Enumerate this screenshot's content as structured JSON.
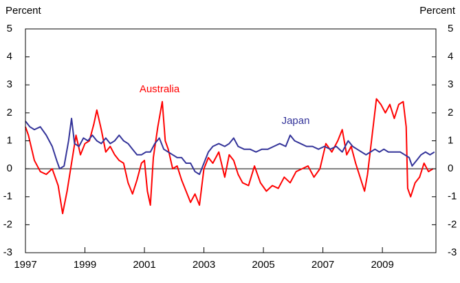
{
  "chart_data": {
    "type": "line",
    "y_label": "Percent",
    "y2_label": "Percent",
    "annotations": [
      "Australia",
      "Japan"
    ],
    "xlim": [
      1997,
      2010.8
    ],
    "xticks": [
      1997,
      1999,
      2001,
      2003,
      2005,
      2007,
      2009
    ],
    "ylim": [
      -3,
      5
    ],
    "yticks": [
      -3,
      -2,
      -1,
      0,
      1,
      2,
      3,
      4,
      5
    ],
    "y2lim": [
      -3,
      5
    ],
    "y2ticks": [
      -3,
      -2,
      -1,
      0,
      1,
      2,
      3,
      4,
      5
    ],
    "series": [
      {
        "name": "Australia",
        "color": "#ff0000",
        "x": [
          1997.0,
          1997.1,
          1997.3,
          1997.5,
          1997.7,
          1997.9,
          1998.1,
          1998.25,
          1998.4,
          1998.55,
          1998.7,
          1998.85,
          1999.0,
          1999.15,
          1999.3,
          1999.4,
          1999.55,
          1999.7,
          1999.85,
          2000.0,
          2000.15,
          2000.3,
          2000.45,
          2000.6,
          2000.75,
          2000.9,
          2001.0,
          2001.1,
          2001.2,
          2001.3,
          2001.45,
          2001.6,
          2001.7,
          2001.8,
          2001.95,
          2002.1,
          2002.25,
          2002.4,
          2002.55,
          2002.7,
          2002.85,
          2003.0,
          2003.15,
          2003.3,
          2003.5,
          2003.7,
          2003.85,
          2004.0,
          2004.15,
          2004.3,
          2004.5,
          2004.7,
          2004.9,
          2005.1,
          2005.3,
          2005.5,
          2005.7,
          2005.9,
          2006.1,
          2006.3,
          2006.5,
          2006.7,
          2006.9,
          2007.1,
          2007.3,
          2007.5,
          2007.65,
          2007.8,
          2007.95,
          2008.1,
          2008.25,
          2008.4,
          2008.5,
          2008.6,
          2008.7,
          2008.8,
          2008.95,
          2009.1,
          2009.25,
          2009.4,
          2009.55,
          2009.7,
          2009.8,
          2009.85,
          2009.95,
          2010.1,
          2010.25,
          2010.4,
          2010.55,
          2010.7
        ],
        "values": [
          1.5,
          1.2,
          0.3,
          -0.1,
          -0.2,
          0.0,
          -0.6,
          -1.6,
          -0.8,
          0.2,
          1.2,
          0.5,
          0.9,
          1.0,
          1.6,
          2.1,
          1.4,
          0.6,
          0.8,
          0.5,
          0.3,
          0.2,
          -0.5,
          -0.9,
          -0.4,
          0.2,
          0.3,
          -0.8,
          -1.3,
          0.4,
          1.5,
          2.4,
          1.0,
          0.7,
          0.0,
          0.1,
          -0.4,
          -0.8,
          -1.2,
          -0.9,
          -1.3,
          0.0,
          0.4,
          0.2,
          0.6,
          -0.3,
          0.5,
          0.3,
          -0.2,
          -0.5,
          -0.6,
          0.1,
          -0.5,
          -0.8,
          -0.6,
          -0.7,
          -0.3,
          -0.5,
          -0.1,
          0.0,
          0.1,
          -0.3,
          0.0,
          0.9,
          0.6,
          1.0,
          1.4,
          0.5,
          0.8,
          0.2,
          -0.3,
          -0.8,
          -0.2,
          0.7,
          1.6,
          2.5,
          2.3,
          2.0,
          2.3,
          1.8,
          2.3,
          2.4,
          1.5,
          -0.7,
          -1.0,
          -0.5,
          -0.3,
          0.2,
          -0.1,
          0.0
        ]
      },
      {
        "name": "Japan",
        "color": "#333399",
        "x": [
          1997.0,
          1997.15,
          1997.3,
          1997.5,
          1997.7,
          1997.9,
          1998.05,
          1998.15,
          1998.3,
          1998.45,
          1998.55,
          1998.65,
          1998.8,
          1998.95,
          1999.1,
          1999.25,
          1999.4,
          1999.55,
          1999.7,
          1999.85,
          2000.0,
          2000.15,
          2000.3,
          2000.45,
          2000.6,
          2000.75,
          2000.9,
          2001.05,
          2001.2,
          2001.35,
          2001.5,
          2001.65,
          2001.8,
          2001.95,
          2002.1,
          2002.25,
          2002.4,
          2002.55,
          2002.7,
          2002.85,
          2003.0,
          2003.15,
          2003.3,
          2003.5,
          2003.7,
          2003.85,
          2004.0,
          2004.15,
          2004.35,
          2004.55,
          2004.75,
          2004.95,
          2005.15,
          2005.35,
          2005.55,
          2005.75,
          2005.9,
          2006.05,
          2006.25,
          2006.45,
          2006.65,
          2006.85,
          2007.05,
          2007.25,
          2007.45,
          2007.65,
          2007.85,
          2008.0,
          2008.15,
          2008.3,
          2008.45,
          2008.6,
          2008.75,
          2008.9,
          2009.05,
          2009.2,
          2009.4,
          2009.6,
          2009.75,
          2009.9,
          2010.0,
          2010.15,
          2010.3,
          2010.45,
          2010.6,
          2010.75
        ],
        "values": [
          1.7,
          1.5,
          1.4,
          1.5,
          1.2,
          0.8,
          0.3,
          0.0,
          0.1,
          1.0,
          1.8,
          0.9,
          0.8,
          1.1,
          1.0,
          1.2,
          1.0,
          0.9,
          1.1,
          0.9,
          1.0,
          1.2,
          1.0,
          0.9,
          0.7,
          0.5,
          0.5,
          0.6,
          0.6,
          0.9,
          1.1,
          0.7,
          0.6,
          0.5,
          0.4,
          0.4,
          0.2,
          0.2,
          -0.1,
          -0.2,
          0.2,
          0.6,
          0.8,
          0.9,
          0.8,
          0.9,
          1.1,
          0.8,
          0.7,
          0.7,
          0.6,
          0.7,
          0.7,
          0.8,
          0.9,
          0.8,
          1.2,
          1.0,
          0.9,
          0.8,
          0.8,
          0.7,
          0.8,
          0.7,
          0.8,
          0.6,
          1.0,
          0.8,
          0.7,
          0.6,
          0.5,
          0.6,
          0.7,
          0.6,
          0.7,
          0.6,
          0.6,
          0.6,
          0.5,
          0.4,
          0.1,
          0.3,
          0.5,
          0.6,
          0.5,
          0.6
        ]
      }
    ]
  }
}
